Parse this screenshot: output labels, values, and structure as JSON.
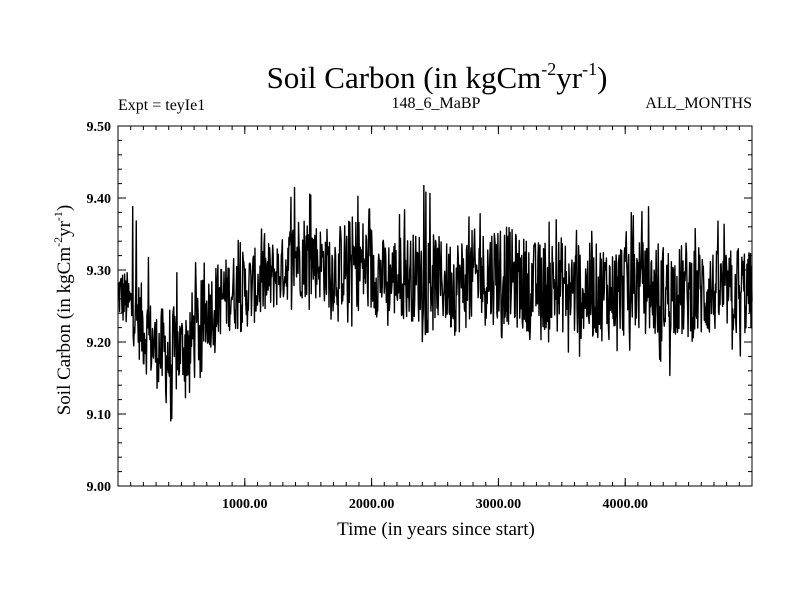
{
  "chart_data": {
    "type": "line",
    "title_main": "Soil Carbon (in kgCm",
    "title_sup1": "-2",
    "title_mid": "yr",
    "title_sup2": "-1",
    "title_end": ")",
    "subtitle_left": "Expt = teyIe1",
    "subtitle_center": "148_6_MaBP",
    "subtitle_right": "ALL_MONTHS",
    "xlabel": "Time (in years since start)",
    "ylabel_main": "Soil Carbon (in kgCm",
    "ylabel_sup1": "-2",
    "ylabel_mid": "yr",
    "ylabel_sup2": "-1",
    "ylabel_end": ")",
    "xlim": [
      0,
      5000
    ],
    "ylim": [
      9.0,
      9.5
    ],
    "xticks": [
      1000,
      2000,
      3000,
      4000
    ],
    "xtick_labels": [
      "1000.00",
      "2000.00",
      "3000.00",
      "4000.00"
    ],
    "yticks": [
      9.0,
      9.1,
      9.2,
      9.3,
      9.4,
      9.5
    ],
    "ytick_labels": [
      "9.00",
      "9.10",
      "9.20",
      "9.30",
      "9.40",
      "9.50"
    ],
    "grid": false,
    "series": [
      {
        "color": "#000000",
        "x": [
          0,
          100,
          200,
          300,
          400,
          500,
          600,
          700,
          800,
          900,
          1000,
          1100,
          1200,
          1300,
          1400,
          1500,
          1600,
          1700,
          1800,
          1900,
          2000,
          2100,
          2200,
          2300,
          2400,
          2500,
          2600,
          2700,
          2800,
          2900,
          3000,
          3100,
          3200,
          3300,
          3400,
          3500,
          3600,
          3700,
          3800,
          3900,
          4000,
          4100,
          4200,
          4300,
          4400,
          4500,
          4600,
          4700,
          4800,
          4900,
          5000
        ],
        "mean": [
          9.27,
          9.25,
          9.22,
          9.19,
          9.18,
          9.19,
          9.21,
          9.24,
          9.26,
          9.27,
          9.27,
          9.28,
          9.29,
          9.3,
          9.32,
          9.32,
          9.31,
          9.3,
          9.31,
          9.31,
          9.3,
          9.29,
          9.29,
          9.29,
          9.29,
          9.29,
          9.28,
          9.28,
          9.29,
          9.29,
          9.3,
          9.29,
          9.28,
          9.28,
          9.28,
          9.28,
          9.27,
          9.27,
          9.27,
          9.27,
          9.28,
          9.28,
          9.27,
          9.27,
          9.27,
          9.27,
          9.27,
          9.27,
          9.27,
          9.27,
          9.27
        ],
        "min": [
          9.22,
          9.19,
          9.14,
          9.12,
          9.08,
          9.12,
          9.12,
          9.17,
          9.18,
          9.16,
          9.2,
          9.21,
          9.22,
          9.24,
          9.24,
          9.24,
          9.24,
          9.22,
          9.22,
          9.22,
          9.21,
          9.22,
          9.21,
          9.21,
          9.2,
          9.21,
          9.2,
          9.16,
          9.2,
          9.19,
          9.2,
          9.2,
          9.19,
          9.2,
          9.19,
          9.19,
          9.18,
          9.18,
          9.15,
          9.19,
          9.18,
          9.19,
          9.19,
          9.16,
          9.14,
          9.18,
          9.17,
          9.19,
          9.2,
          9.17,
          9.2
        ],
        "max": [
          9.34,
          9.4,
          9.34,
          9.29,
          9.29,
          9.31,
          9.31,
          9.32,
          9.33,
          9.34,
          9.35,
          9.36,
          9.36,
          9.38,
          9.42,
          9.41,
          9.38,
          9.38,
          9.39,
          9.41,
          9.39,
          9.37,
          9.38,
          9.39,
          9.42,
          9.4,
          9.38,
          9.37,
          9.38,
          9.38,
          9.4,
          9.41,
          9.37,
          9.36,
          9.37,
          9.38,
          9.36,
          9.36,
          9.36,
          9.37,
          9.38,
          9.38,
          9.39,
          9.36,
          9.35,
          9.37,
          9.36,
          9.38,
          9.37,
          9.38,
          9.34
        ]
      }
    ]
  }
}
